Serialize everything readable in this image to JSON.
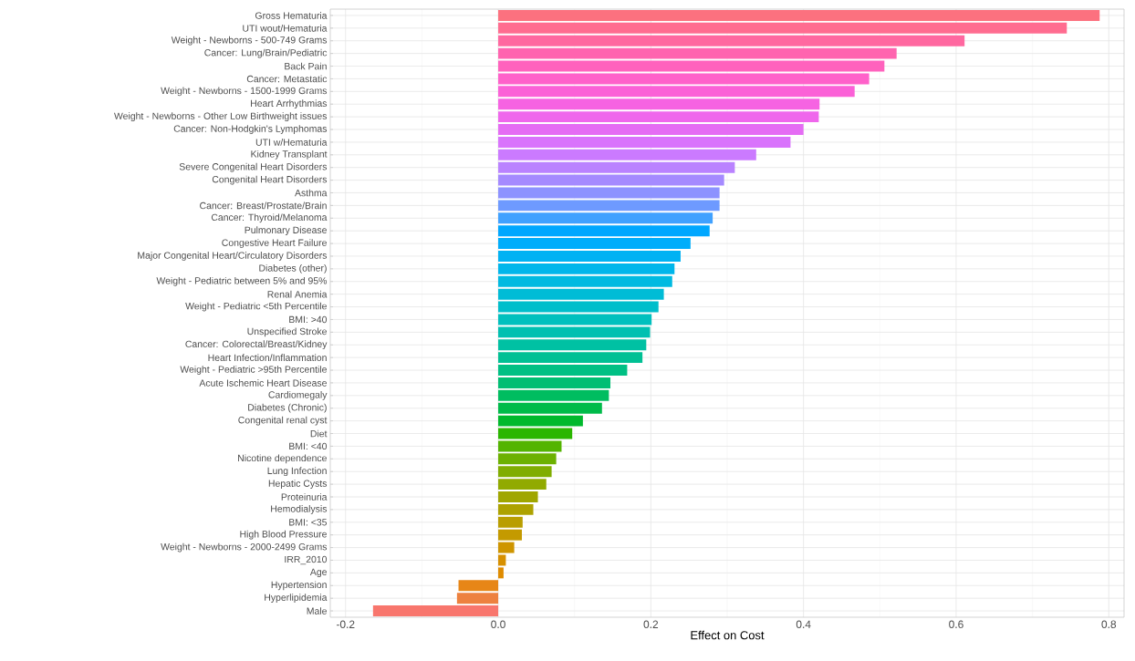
{
  "chart_data": {
    "type": "bar",
    "orientation": "horizontal",
    "xlabel": "Effect on Cost",
    "categories": [
      "Gross Hematuria",
      "UTI wout/Hematuria",
      "Weight - Newborns - 500-749 Grams",
      "Cancer: Lung/Brain/Pediatric",
      "Back Pain",
      "Cancer: Metastatic",
      "Weight - Newborns - 1500-1999 Grams",
      "Heart Arrhythmias",
      "Weight - Newborns - Other Low Birthweight issues",
      "Cancer: Non-Hodgkin's Lymphomas",
      "UTI w/Hematuria",
      "Kidney Transplant",
      "Severe Congenital Heart Disorders",
      "Congenital Heart Disorders",
      "Asthma",
      "Cancer: Breast/Prostate/Brain",
      "Cancer: Thyroid/Melanoma",
      "Pulmonary Disease",
      "Congestive Heart Failure",
      "Major Congenital Heart/Circulatory Disorders",
      "Diabetes (other)",
      "Weight - Pediatric between 5% and 95%",
      "Renal Anemia",
      "Weight - Pediatric <5th Percentile",
      "BMI: >40",
      "Unspecified Stroke",
      "Cancer: Colorectal/Breast/Kidney",
      "Heart Infection/Inflammation",
      "Weight - Pediatric >95th Percentile",
      "Acute Ischemic Heart Disease",
      "Cardiomegaly",
      "Diabetes (Chronic)",
      "Congenital renal cyst",
      "Diet",
      "BMI: <40",
      "Nicotine dependence",
      "Lung Infection",
      "Hepatic Cysts",
      "Proteinuria",
      "Hemodialysis",
      "BMI: <35",
      "High Blood Pressure",
      "Weight - Newborns - 2000-2499 Grams",
      "IRR_2010",
      "Age",
      "Hypertension",
      "Hyperlipidemia",
      "Male"
    ],
    "values": [
      0.788,
      0.745,
      0.611,
      0.522,
      0.506,
      0.486,
      0.467,
      0.421,
      0.42,
      0.4,
      0.383,
      0.338,
      0.31,
      0.296,
      0.29,
      0.29,
      0.281,
      0.277,
      0.252,
      0.239,
      0.231,
      0.228,
      0.217,
      0.21,
      0.201,
      0.199,
      0.194,
      0.189,
      0.169,
      0.147,
      0.145,
      0.136,
      0.111,
      0.097,
      0.083,
      0.076,
      0.07,
      0.063,
      0.052,
      0.046,
      0.032,
      0.031,
      0.021,
      0.01,
      0.007,
      -0.052,
      -0.054,
      -0.164
    ],
    "colors": [
      "#fc717f",
      "#ff6c90",
      "#ff68a0",
      "#ff64af",
      "#ff62bd",
      "#ff61ca",
      "#fb61d7",
      "#f663e2",
      "#ef67ec",
      "#e56cf4",
      "#d973fc",
      "#cb7aff",
      "#ba82ff",
      "#a58aff",
      "#8d92ff",
      "#6e9aff",
      "#40a1ff",
      "#00a7ff",
      "#00adfb",
      "#00b2f3",
      "#00b6eb",
      "#00bae1",
      "#00bcd6",
      "#00becb",
      "#00c0be",
      "#00c0b1",
      "#00c1a3",
      "#00c094",
      "#00c084",
      "#00be73",
      "#00bd60",
      "#00bb4a",
      "#00b92d",
      "#2ab600",
      "#53b400",
      "#6cb100",
      "#80ad00",
      "#91aa00",
      "#a0a600",
      "#ada200",
      "#b99e00",
      "#c49a00",
      "#ce9500",
      "#d79000",
      "#df8b00",
      "#e78617",
      "#ed813f",
      "#f8766d"
    ],
    "xlim": [
      -0.22,
      0.82
    ],
    "xticks": [
      {
        "value": -0.2,
        "label": "-0.2"
      },
      {
        "value": 0,
        "label": "0.0"
      },
      {
        "value": 0.2,
        "label": "0.2"
      },
      {
        "value": 0.4,
        "label": "0.4"
      },
      {
        "value": 0.6,
        "label": "0.6"
      },
      {
        "value": 0.8,
        "label": "0.8"
      }
    ],
    "grid": true
  }
}
